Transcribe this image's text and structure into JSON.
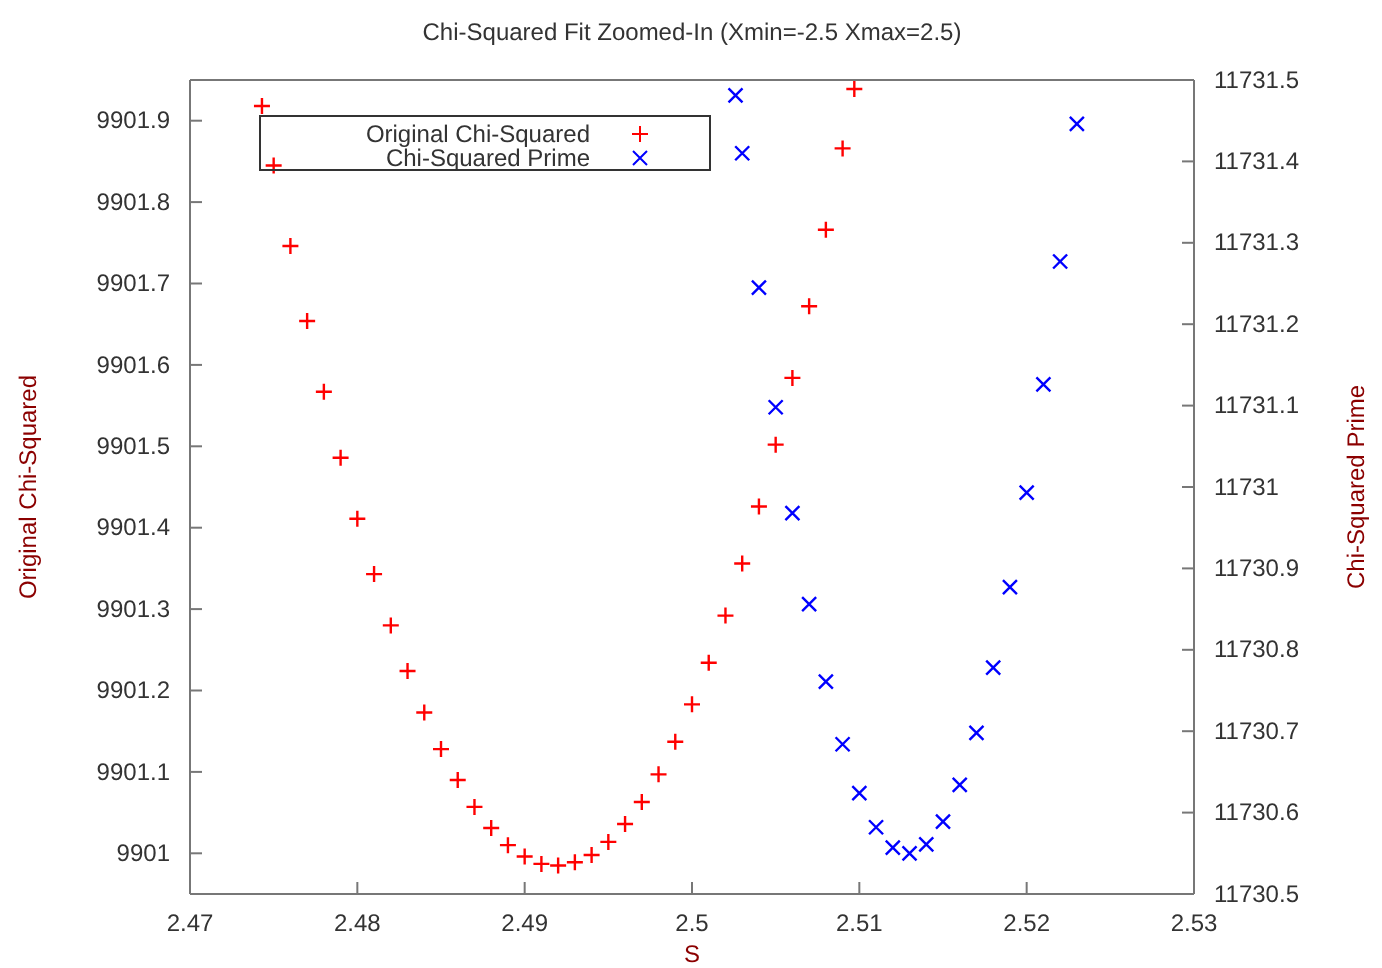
{
  "chart_data": {
    "type": "scatter",
    "title": "Chi-Squared Fit Zoomed-In (Xmin=-2.5 Xmax=2.5)",
    "xlabel": "S",
    "ylabel": "Original Chi-Squared",
    "y2label": "Chi-Squared Prime",
    "xlim": [
      2.47,
      2.53
    ],
    "xticks": [
      2.47,
      2.48,
      2.49,
      2.5,
      2.51,
      2.52,
      2.53
    ],
    "ylim": [
      9900.95,
      9901.95
    ],
    "yticks": [
      9901,
      9901.1,
      9901.2,
      9901.3,
      9901.4,
      9901.5,
      9901.6,
      9901.7,
      9901.8,
      9901.9
    ],
    "y2lim": [
      11730.5,
      11731.5
    ],
    "y2ticks": [
      11730.5,
      11730.6,
      11730.7,
      11730.8,
      11730.9,
      11731,
      11731.1,
      11731.2,
      11731.3,
      11731.4,
      11731.5
    ],
    "grid": false,
    "legend": "top left",
    "series": [
      {
        "name": "Original Chi-Squared",
        "color": "#ff0000",
        "marker": "plus",
        "x": [
          2.4743,
          2.475,
          2.476,
          2.477,
          2.478,
          2.479,
          2.48,
          2.481,
          2.482,
          2.483,
          2.484,
          2.485,
          2.486,
          2.487,
          2.488,
          2.489,
          2.49,
          2.491,
          2.492,
          2.493,
          2.494,
          2.495,
          2.496,
          2.497,
          2.498,
          2.499,
          2.5,
          2.501,
          2.502,
          2.503,
          2.504,
          2.505,
          2.506,
          2.507,
          2.508,
          2.509,
          2.5097
        ],
        "values": [
          9901.918,
          9901.845,
          9901.746,
          9901.654,
          9901.567,
          9901.486,
          9901.411,
          9901.343,
          9901.28,
          9901.224,
          9901.173,
          9901.128,
          9901.09,
          9901.057,
          9901.031,
          9901.01,
          9900.996,
          9900.987,
          9900.985,
          9900.989,
          9900.998,
          9901.014,
          9901.036,
          9901.063,
          9901.097,
          9901.137,
          9901.183,
          9901.234,
          9901.292,
          9901.356,
          9901.426,
          9901.502,
          9901.584,
          9901.672,
          9901.766,
          9901.866,
          9901.939
        ]
      },
      {
        "name": "Chi-Squared Prime",
        "color": "#0000ff",
        "marker": "cross",
        "axis": "y2",
        "x": [
          2.5026,
          2.503,
          2.504,
          2.505,
          2.506,
          2.507,
          2.508,
          2.509,
          2.51,
          2.511,
          2.512,
          2.513,
          2.514,
          2.515,
          2.516,
          2.517,
          2.518,
          2.519,
          2.52,
          2.521,
          2.522,
          2.523
        ],
        "values": [
          11731.481,
          11731.41,
          11731.245,
          11731.098,
          11730.968,
          11730.856,
          11730.761,
          11730.684,
          11730.624,
          11730.582,
          11730.557,
          11730.55,
          11730.561,
          11730.589,
          11730.634,
          11730.698,
          11730.778,
          11730.877,
          11730.993,
          11731.126,
          11731.277,
          11731.446
        ]
      }
    ]
  }
}
